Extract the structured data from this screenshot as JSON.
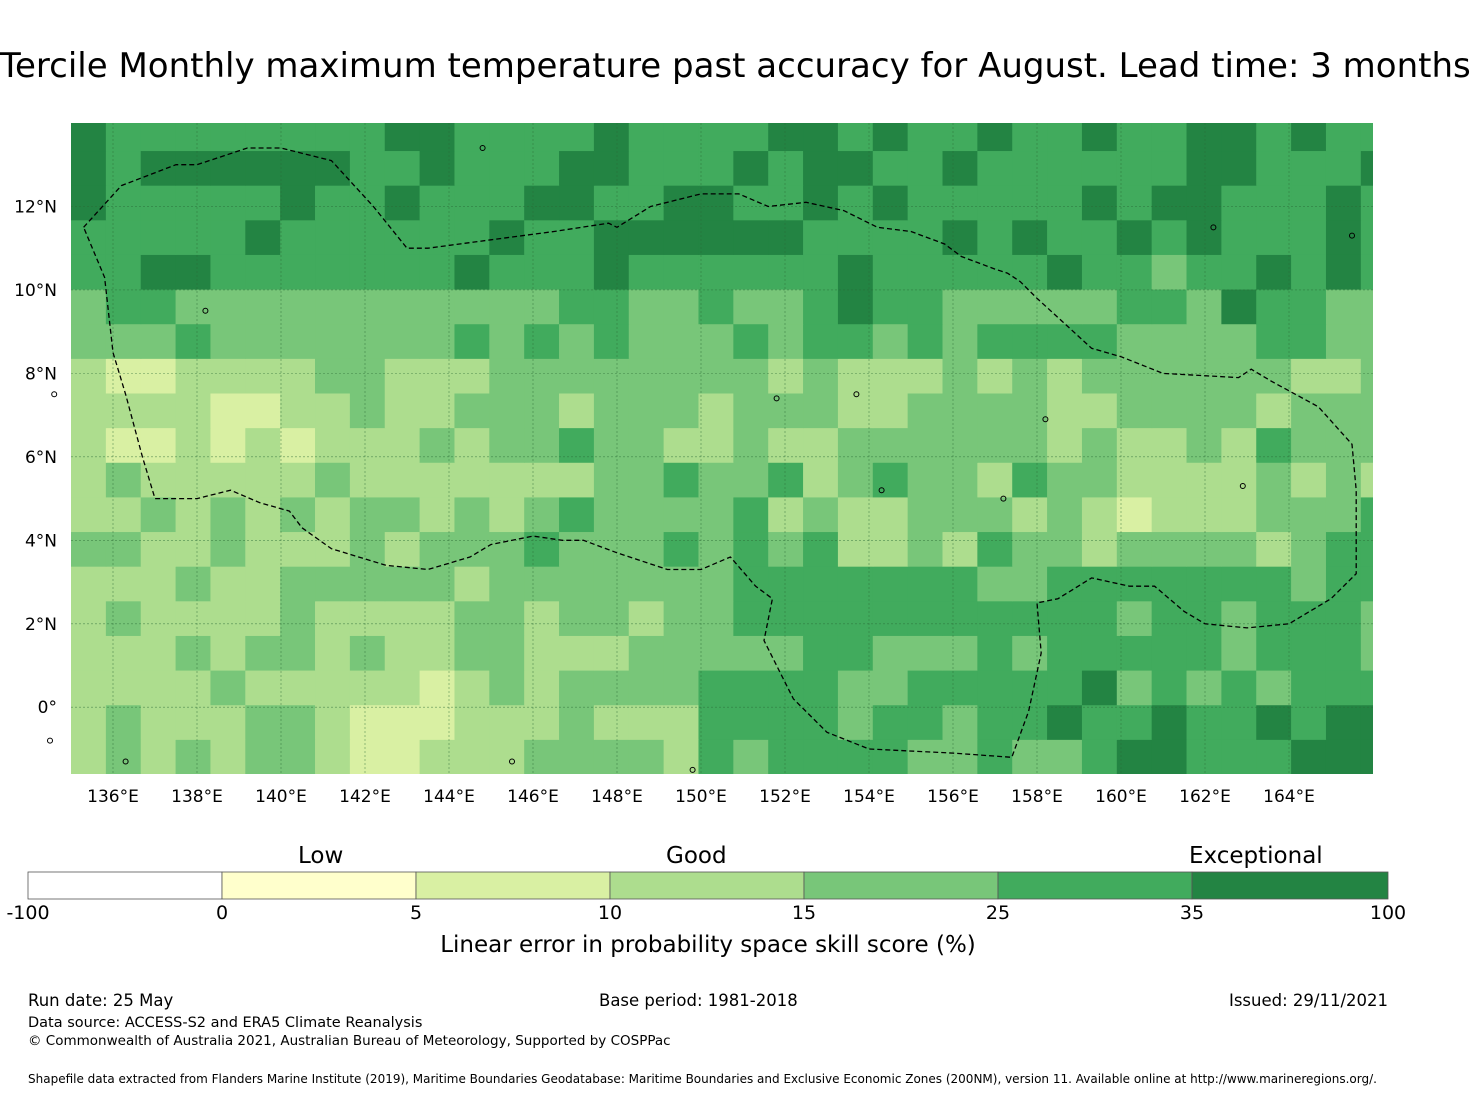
{
  "title": "Tercile Monthly maximum temperature past accuracy for August. Lead time: 3 months",
  "map": {
    "lon_ticks": [
      "136°E",
      "138°E",
      "140°E",
      "142°E",
      "144°E",
      "146°E",
      "148°E",
      "150°E",
      "152°E",
      "154°E",
      "156°E",
      "158°E",
      "160°E",
      "162°E",
      "164°E"
    ],
    "lat_ticks": [
      "12°N",
      "10°N",
      "8°N",
      "6°N",
      "4°N",
      "2°N",
      "0°"
    ],
    "lon_range": [
      135.0,
      166.0
    ],
    "lat_range": [
      -1.6,
      14.0
    ],
    "boundary": "Exclusive Economic Zone (dashed)"
  },
  "colorbar": {
    "categories": [
      "Low",
      "Good",
      "Exceptional"
    ],
    "ticks": [
      "-100",
      "0",
      "5",
      "10",
      "15",
      "25",
      "35",
      "100"
    ],
    "colors": [
      "#ffffff",
      "#ffffcc",
      "#d9f0a3",
      "#addd8e",
      "#78c679",
      "#41ab5d",
      "#238443"
    ],
    "label": "Linear error in probability space skill score (%)"
  },
  "footer": {
    "run_date": "Run date: 25 May",
    "base_period": "Base period: 1981-2018",
    "issued": "Issued: 29/11/2021",
    "data_source": "Data source: ACCESS-S2 and ERA5 Climate Reanalysis",
    "copyright": "© Commonwealth of Australia 2021, Australian Bureau of Meteorology, Supported by COSPPac",
    "shapefile": "Shapefile data extracted from Flanders Marine Institute (2019), Maritime Boundaries Geodatabase: Maritime Boundaries and Exclusive Economic Zones (200NM), version 11. Available online at http://www.marineregions.org/."
  }
}
